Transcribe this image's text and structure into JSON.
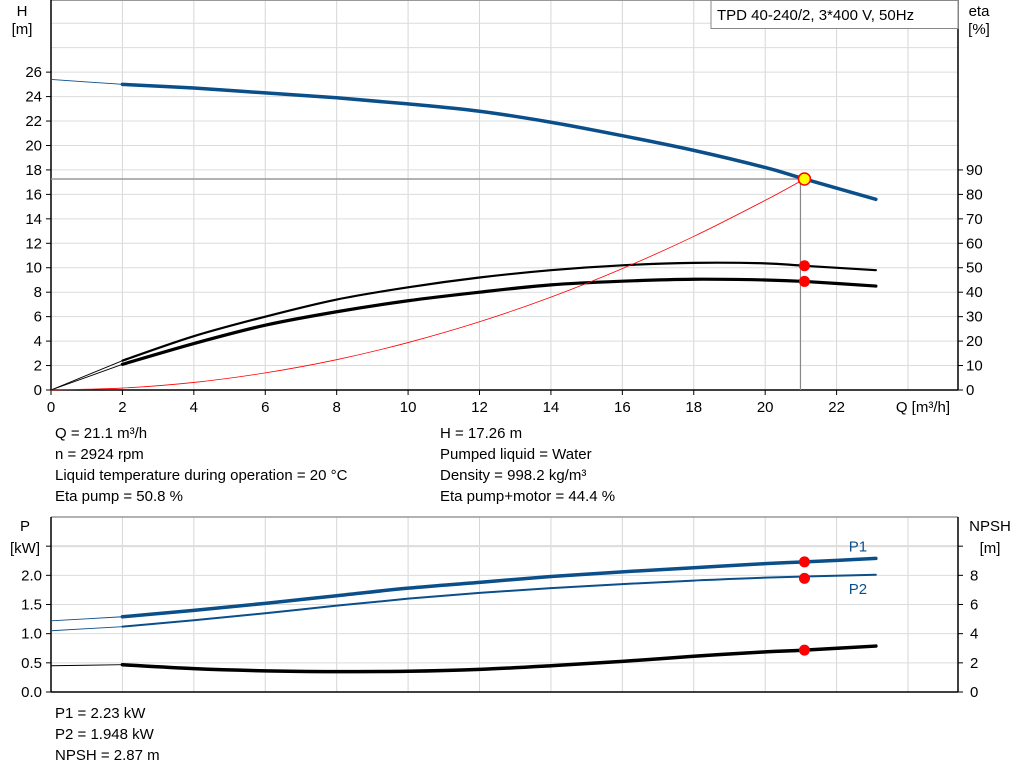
{
  "chart_data": [
    {
      "type": "line",
      "title_box": "TPD 40-240/2, 3*400 V, 50Hz",
      "xlabel": "Q [m³/h]",
      "ylabel_left": [
        "H",
        "[m]"
      ],
      "ylabel_right": [
        "eta",
        "[%]"
      ],
      "xlim": [
        0,
        25.4
      ],
      "ylim_left": [
        0,
        31.9
      ],
      "ylim_right": [
        0,
        159.5
      ],
      "x_ticks": [
        0,
        2,
        4,
        6,
        8,
        10,
        12,
        14,
        16,
        18,
        20,
        22
      ],
      "y_ticks_left": [
        0,
        2,
        4,
        6,
        8,
        10,
        12,
        14,
        16,
        18,
        20,
        22,
        24,
        26
      ],
      "y_ticks_right": [
        0,
        10,
        20,
        30,
        40,
        50,
        60,
        70,
        80,
        90
      ],
      "grid": true,
      "series": [
        {
          "id": "H",
          "axis": "left",
          "color": "#0b4f8a",
          "x": [
            0,
            2,
            4,
            6,
            8,
            10,
            12,
            14,
            16,
            18,
            20,
            21.1,
            23.1
          ],
          "y": [
            25.4,
            25.0,
            24.7,
            24.3,
            23.9,
            23.4,
            22.8,
            21.9,
            20.8,
            19.6,
            18.2,
            17.26,
            15.6
          ]
        },
        {
          "id": "eta-pump",
          "axis": "right",
          "color": "#000000",
          "x": [
            0,
            2,
            4,
            6,
            8,
            10,
            12,
            14,
            16,
            18,
            20,
            21.1,
            23.1
          ],
          "y": [
            0,
            12,
            22,
            30,
            37,
            42,
            46,
            49,
            51,
            52,
            51.8,
            50.8,
            49
          ]
        },
        {
          "id": "eta-pump-motor",
          "axis": "right",
          "color": "#000000",
          "x": [
            0,
            2,
            4,
            6,
            8,
            10,
            12,
            14,
            16,
            18,
            20,
            21.1,
            23.1
          ],
          "y": [
            0,
            10.5,
            19,
            26.5,
            32,
            36.5,
            40,
            43,
            44.5,
            45.3,
            45,
            44.4,
            42.5
          ]
        },
        {
          "id": "system-curve",
          "axis": "left",
          "color": "#ff0000",
          "x": [
            0,
            2,
            4,
            6,
            8,
            10,
            12,
            14,
            16,
            18,
            20,
            21.1
          ],
          "y": [
            0,
            0.16,
            0.62,
            1.4,
            2.48,
            3.88,
            5.58,
            7.6,
            9.93,
            12.56,
            15.51,
            17.26
          ]
        }
      ],
      "operating_point": {
        "Q": 21.1,
        "H": 17.26,
        "eta_pump": 50.8,
        "eta_pump_motor": 44.4
      }
    },
    {
      "type": "line",
      "ylabel_left": [
        "P",
        "[kW]"
      ],
      "ylabel_right": [
        "NPSH",
        "[m]"
      ],
      "xlim": [
        0,
        25.4
      ],
      "ylim_left": [
        0,
        3.0
      ],
      "ylim_right": [
        0,
        12
      ],
      "y_ticks_left": [
        "0.0",
        "0.5",
        "1.0",
        "1.5",
        "2.0"
      ],
      "y_ticks_right": [
        "0",
        "2",
        "4",
        "6",
        "8"
      ],
      "grid": true,
      "series": [
        {
          "id": "P1",
          "name": "P1",
          "axis": "left",
          "color": "#0b4f8a",
          "x": [
            0,
            2,
            4,
            6,
            8,
            10,
            12,
            14,
            16,
            18,
            20,
            21.1,
            23.1
          ],
          "y": [
            1.22,
            1.29,
            1.4,
            1.52,
            1.65,
            1.78,
            1.88,
            1.98,
            2.06,
            2.13,
            2.2,
            2.23,
            2.29
          ]
        },
        {
          "id": "P2",
          "name": "P2",
          "axis": "left",
          "color": "#0b4f8a",
          "x": [
            0,
            2,
            4,
            6,
            8,
            10,
            12,
            14,
            16,
            18,
            20,
            21.1,
            23.1
          ],
          "y": [
            1.05,
            1.12,
            1.23,
            1.35,
            1.48,
            1.6,
            1.7,
            1.78,
            1.85,
            1.91,
            1.96,
            1.948,
            2.01
          ]
        },
        {
          "id": "NPSH",
          "axis": "right",
          "color": "#000000",
          "x": [
            0,
            2,
            4,
            6,
            8,
            10,
            12,
            14,
            16,
            18,
            20,
            21.1,
            23.1
          ],
          "y": [
            1.8,
            1.87,
            1.6,
            1.45,
            1.4,
            1.42,
            1.55,
            1.8,
            2.1,
            2.45,
            2.75,
            2.87,
            3.15
          ]
        }
      ],
      "operating_point": {
        "Q": 21.1,
        "P1": 2.23,
        "P2": 1.948,
        "NPSH": 2.87
      }
    }
  ],
  "info_top_left": [
    "Q = 21.1 m³/h",
    "n = 2924 rpm",
    "Liquid temperature during operation = 20 °C",
    "Eta pump = 50.8 %"
  ],
  "info_top_right": [
    "H = 17.26 m",
    "Pumped liquid = Water",
    "Density = 998.2 kg/m³",
    "Eta pump+motor = 44.4 %"
  ],
  "info_bottom": [
    "P1 = 2.23 kW",
    "P2 = 1.948 kW",
    "NPSH = 2.87 m"
  ]
}
